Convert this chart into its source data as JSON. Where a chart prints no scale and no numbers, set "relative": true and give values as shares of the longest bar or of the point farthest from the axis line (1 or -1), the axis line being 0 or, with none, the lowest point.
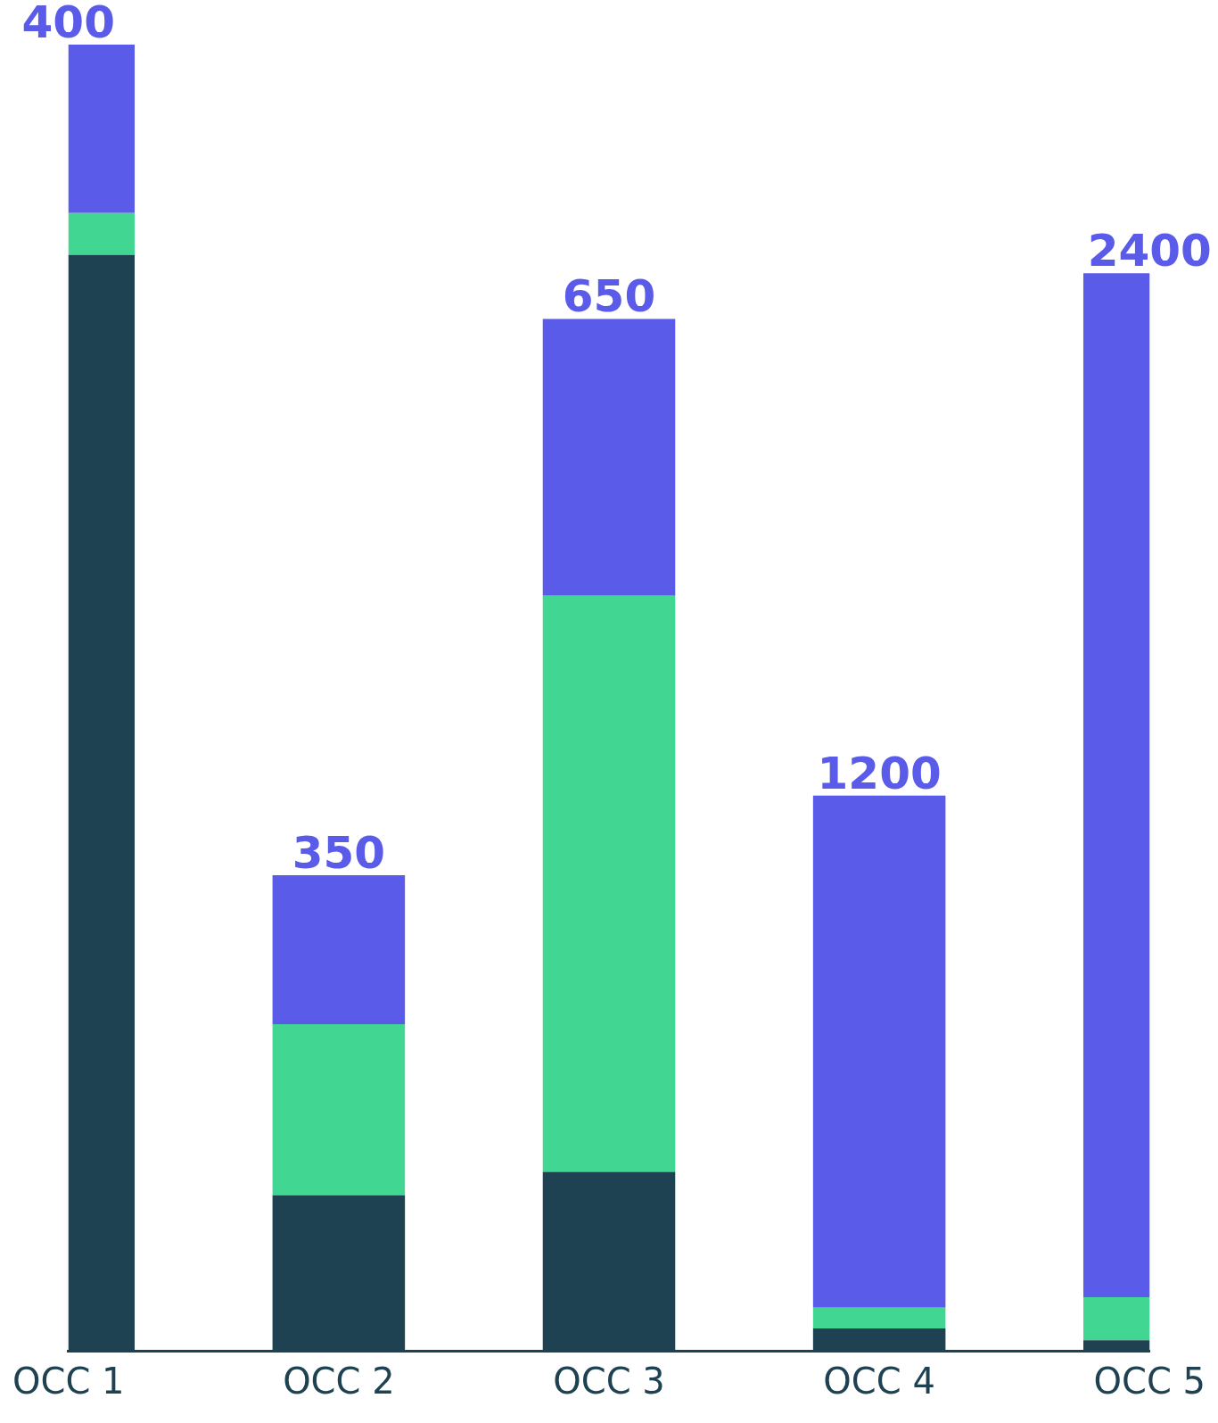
{
  "chart_data": {
    "type": "bar",
    "stacked": true,
    "relative": true,
    "legend": false,
    "grid": false,
    "categories": [
      "OCC 1",
      "OCC 2",
      "OCC 3",
      "OCC 4",
      "OCC 5"
    ],
    "series": [
      {
        "color": "#1f4252",
        "values": [
          0.839,
          0.119,
          0.137,
          0.017,
          0.008
        ]
      },
      {
        "color": "#42d693",
        "values": [
          0.032,
          0.131,
          0.441,
          0.016,
          0.033
        ]
      },
      {
        "color": "#5b5be9",
        "values": [
          0.129,
          0.114,
          0.212,
          0.392,
          0.784
        ]
      }
    ],
    "annotations": [
      {
        "text": "400",
        "x": "OCC 1",
        "y": 1
      },
      {
        "text": "350",
        "x": "OCC 2",
        "y": 0.364
      },
      {
        "text": "650",
        "x": "OCC 3",
        "y": 0.79
      },
      {
        "text": "1200",
        "x": "OCC 4",
        "y": 0.425
      },
      {
        "text": "2400",
        "x": "OCC 5",
        "y": 0.825
      }
    ]
  }
}
